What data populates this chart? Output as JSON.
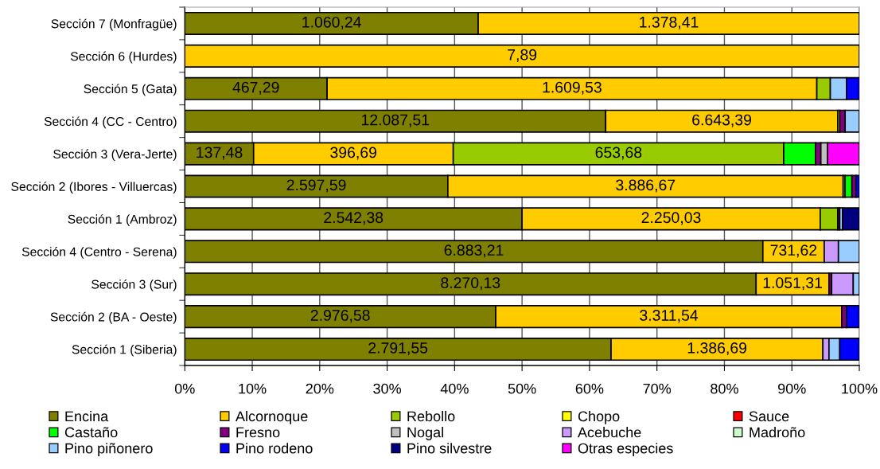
{
  "chart_data": {
    "type": "bar",
    "orientation": "horizontal",
    "stacked": true,
    "categories": [
      "Sección 7 (Monfragüe)",
      "Sección 6 (Hurdes)",
      "Sección 5 (Gata)",
      "Sección 4 (CC - Centro)",
      "Sección 3 (Vera-Jerte)",
      "Sección 2 (Ibores - Villuercas)",
      "Sección 1 (Ambroz)",
      "Sección 4 (Centro - Serena)",
      "Sección 3 (Sur)",
      "Sección 2 (BA - Oeste)",
      "Sección 1 (Siberia)"
    ],
    "series": [
      {
        "name": "Encina",
        "color": "#808000",
        "values": [
          43.5,
          null,
          21.1,
          62.4,
          10.2,
          39.0,
          50.0,
          85.7,
          84.7,
          46.1,
          63.2
        ]
      },
      {
        "name": "Alcornoque",
        "color": "#ffcc00",
        "values": [
          56.5,
          100,
          72.6,
          34.4,
          29.6,
          58.6,
          44.2,
          9.1,
          10.8,
          51.3,
          31.4
        ]
      },
      {
        "name": "Rebollo",
        "color": "#99cc00",
        "values": [
          null,
          null,
          2.0,
          null,
          49.0,
          0.3,
          2.6,
          null,
          null,
          null,
          null
        ]
      },
      {
        "name": "Chopo",
        "color": "#ffff00",
        "values": [
          null,
          null,
          null,
          0.3,
          null,
          null,
          null,
          null,
          null,
          null,
          null
        ]
      },
      {
        "name": "Sauce",
        "color": "#ff0000",
        "values": [
          null,
          null,
          null,
          null,
          null,
          null,
          null,
          null,
          null,
          null,
          null
        ]
      },
      {
        "name": "Castaño",
        "color": "#00ff00",
        "values": [
          null,
          null,
          null,
          null,
          4.7,
          1.0,
          null,
          null,
          null,
          null,
          null
        ]
      },
      {
        "name": "Fresno",
        "color": "#800080",
        "values": [
          null,
          null,
          null,
          0.8,
          0.8,
          0.6,
          0.3,
          null,
          0.4,
          0.7,
          null
        ]
      },
      {
        "name": "Nogal",
        "color": "#c0c0c0",
        "values": [
          null,
          null,
          null,
          null,
          1.0,
          null,
          null,
          null,
          null,
          null,
          null
        ]
      },
      {
        "name": "Acebuche",
        "color": "#cc99ff",
        "values": [
          null,
          null,
          null,
          null,
          null,
          null,
          null,
          2.1,
          3.2,
          null,
          0.9
        ]
      },
      {
        "name": "Madroño",
        "color": "#ccffcc",
        "values": [
          null,
          null,
          null,
          null,
          null,
          null,
          null,
          null,
          null,
          null,
          null
        ]
      },
      {
        "name": "Pino piñonero",
        "color": "#99ccff",
        "values": [
          null,
          null,
          2.4,
          2.1,
          null,
          null,
          0.4,
          3.1,
          0.9,
          null,
          1.6
        ]
      },
      {
        "name": "Pino rodeno",
        "color": "#0000ff",
        "values": [
          null,
          null,
          1.9,
          null,
          null,
          0.5,
          null,
          null,
          null,
          1.9,
          2.9
        ]
      },
      {
        "name": "Pino silvestre",
        "color": "#000080",
        "values": [
          null,
          null,
          null,
          null,
          null,
          null,
          2.5,
          null,
          null,
          null,
          null
        ]
      },
      {
        "name": "Otras especies",
        "color": "#ff00ff",
        "values": [
          null,
          null,
          null,
          null,
          4.7,
          null,
          null,
          null,
          null,
          null,
          null
        ]
      }
    ],
    "annotations": [
      "1.060,24",
      "1.378,41",
      "7,89",
      "467,29",
      "1.609,53",
      "12.087,51",
      "6.643,39",
      "137,48",
      "396,69",
      "653,68",
      "2.597,59",
      "3.886,67",
      "2.542,38",
      "2.250,03",
      "6.883,21",
      "731,62",
      "8.270,13",
      "1.051,31",
      "2.976,58",
      "3.311,54",
      "2.791,55",
      "1.386,69"
    ],
    "xlim": [
      0,
      100
    ],
    "xticks": [
      {
        "value": 0,
        "label": "0%"
      },
      {
        "value": 10,
        "label": "10%"
      },
      {
        "value": 20,
        "label": "20%"
      },
      {
        "value": 30,
        "label": "30%"
      },
      {
        "value": 40,
        "label": "40%"
      },
      {
        "value": 50,
        "label": "50%"
      },
      {
        "value": 60,
        "label": "60%"
      },
      {
        "value": 70,
        "label": "70%"
      },
      {
        "value": 80,
        "label": "80%"
      },
      {
        "value": 90,
        "label": "90%"
      },
      {
        "value": 100,
        "label": "100%"
      }
    ],
    "grid": "x",
    "legend": "bottom"
  }
}
